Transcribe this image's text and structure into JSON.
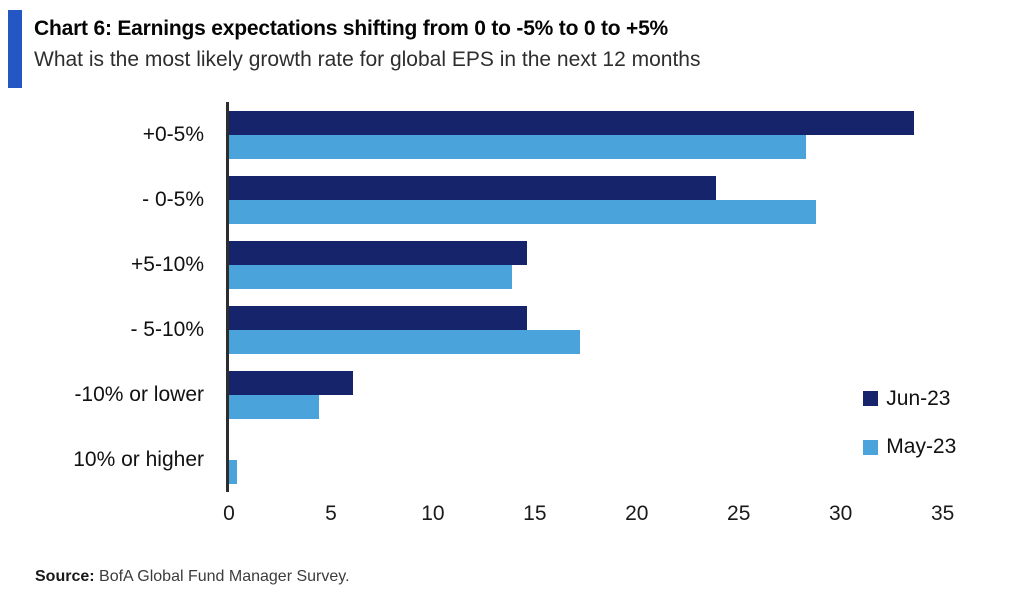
{
  "header": {
    "title": "Chart 6: Earnings expectations shifting from 0 to -5% to 0 to +5%",
    "subtitle": "What is the most likely growth rate for global EPS in the next 12 months",
    "accent_color": "#2456c4"
  },
  "chart_data": {
    "type": "bar",
    "orientation": "horizontal",
    "title": "Chart 6: Earnings expectations shifting from 0 to -5% to 0 to +5%",
    "subtitle": "What is the most likely growth rate for global EPS in the next 12 months",
    "categories": [
      "+0-5%",
      "- 0-5%",
      "+5-10%",
      "- 5-10%",
      "-10% or lower",
      "10% or higher"
    ],
    "series": [
      {
        "name": "Jun-23",
        "color": "#15246b",
        "values": [
          33.6,
          23.9,
          14.6,
          14.6,
          6.1,
          0
        ]
      },
      {
        "name": "May-23",
        "color": "#4aa3db",
        "values": [
          28.3,
          28.8,
          13.9,
          17.2,
          4.4,
          0.4
        ]
      }
    ],
    "x_ticks": [
      0,
      5,
      10,
      15,
      20,
      25,
      30,
      35
    ],
    "xlim": [
      0,
      38.5
    ],
    "xlabel": "",
    "ylabel": "",
    "grid": false,
    "legend_position": "inside-right-lower",
    "legend_tops_pct": [
      73.0,
      85.5
    ],
    "axis_line_color": "#2d2d2d"
  },
  "footer": {
    "source_label": "Source:",
    "source_text": " BofA Global Fund Manager Survey."
  }
}
